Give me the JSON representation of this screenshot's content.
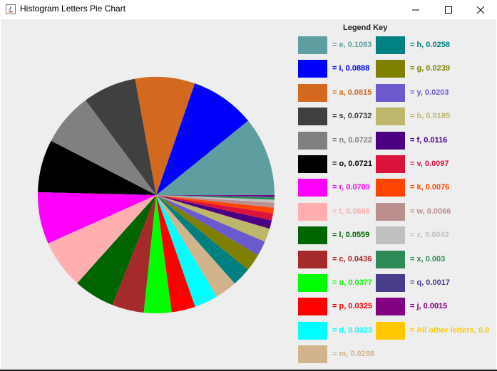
{
  "window": {
    "title": "Histogram Letters Pie Chart",
    "minimize_icon": "minimize-icon",
    "maximize_icon": "maximize-icon",
    "close_icon": "close-icon"
  },
  "legend": {
    "title": "Legend Key"
  },
  "chart_data": {
    "type": "pie",
    "title": "",
    "legend_title": "Legend Key",
    "legend_placement": "right",
    "slices": [
      {
        "label": "= e, 0.1083",
        "letter": "e",
        "value": 0.1083,
        "color": "#5F9EA0"
      },
      {
        "label": "= i, 0.0888",
        "letter": "i",
        "value": 0.0888,
        "color": "#0000FF"
      },
      {
        "label": "= a, 0.0815",
        "letter": "a",
        "value": 0.0815,
        "color": "#D2691E"
      },
      {
        "label": "= s, 0.0732",
        "letter": "s",
        "value": 0.0732,
        "color": "#404040"
      },
      {
        "label": "= n, 0.0722",
        "letter": "n",
        "value": 0.0722,
        "color": "#808080"
      },
      {
        "label": "= o, 0.0721",
        "letter": "o",
        "value": 0.0721,
        "color": "#000000"
      },
      {
        "label": "= r, 0.0709",
        "letter": "r",
        "value": 0.0709,
        "color": "#FF00FF"
      },
      {
        "label": "= t, 0.0668",
        "letter": "t",
        "value": 0.0668,
        "color": "#FFAFAF"
      },
      {
        "label": "= l, 0.0559",
        "letter": "l",
        "value": 0.0559,
        "color": "#006400"
      },
      {
        "label": "= c, 0.0436",
        "letter": "c",
        "value": 0.0436,
        "color": "#A52A2A"
      },
      {
        "label": "= u, 0.0377",
        "letter": "u",
        "value": 0.0377,
        "color": "#00FF00"
      },
      {
        "label": "= p, 0.0325",
        "letter": "p",
        "value": 0.0325,
        "color": "#FF0000"
      },
      {
        "label": "= d, 0.0323",
        "letter": "d",
        "value": 0.0323,
        "color": "#00FFFF"
      },
      {
        "label": "= m, 0.0298",
        "letter": "m",
        "value": 0.0298,
        "color": "#D2B48C"
      },
      {
        "label": "= h, 0.0258",
        "letter": "h",
        "value": 0.0258,
        "color": "#008080"
      },
      {
        "label": "= g, 0.0239",
        "letter": "g",
        "value": 0.0239,
        "color": "#808000"
      },
      {
        "label": "= y, 0.0203",
        "letter": "y",
        "value": 0.0203,
        "color": "#6A5ACD"
      },
      {
        "label": "= b, 0.0185",
        "letter": "b",
        "value": 0.0185,
        "color": "#BDB76B"
      },
      {
        "label": "= f, 0.0116",
        "letter": "f",
        "value": 0.0116,
        "color": "#4B0082"
      },
      {
        "label": "= v, 0.0097",
        "letter": "v",
        "value": 0.0097,
        "color": "#DC143C"
      },
      {
        "label": "= k, 0.0076",
        "letter": "k",
        "value": 0.0076,
        "color": "#FF4500"
      },
      {
        "label": "= w, 0.0066",
        "letter": "w",
        "value": 0.0066,
        "color": "#BC8F8F"
      },
      {
        "label": "= z, 0.0042",
        "letter": "z",
        "value": 0.0042,
        "color": "#C0C0C0"
      },
      {
        "label": "= x, 0.003",
        "letter": "x",
        "value": 0.003,
        "color": "#2E8B57"
      },
      {
        "label": "= q, 0.0017",
        "letter": "q",
        "value": 0.0017,
        "color": "#483D8B"
      },
      {
        "label": "= j, 0.0015",
        "letter": "j",
        "value": 0.0015,
        "color": "#800080"
      },
      {
        "label": "= All other letters, 0.0",
        "letter": "All other letters",
        "value": 0.0,
        "color": "#FFC800"
      }
    ]
  }
}
